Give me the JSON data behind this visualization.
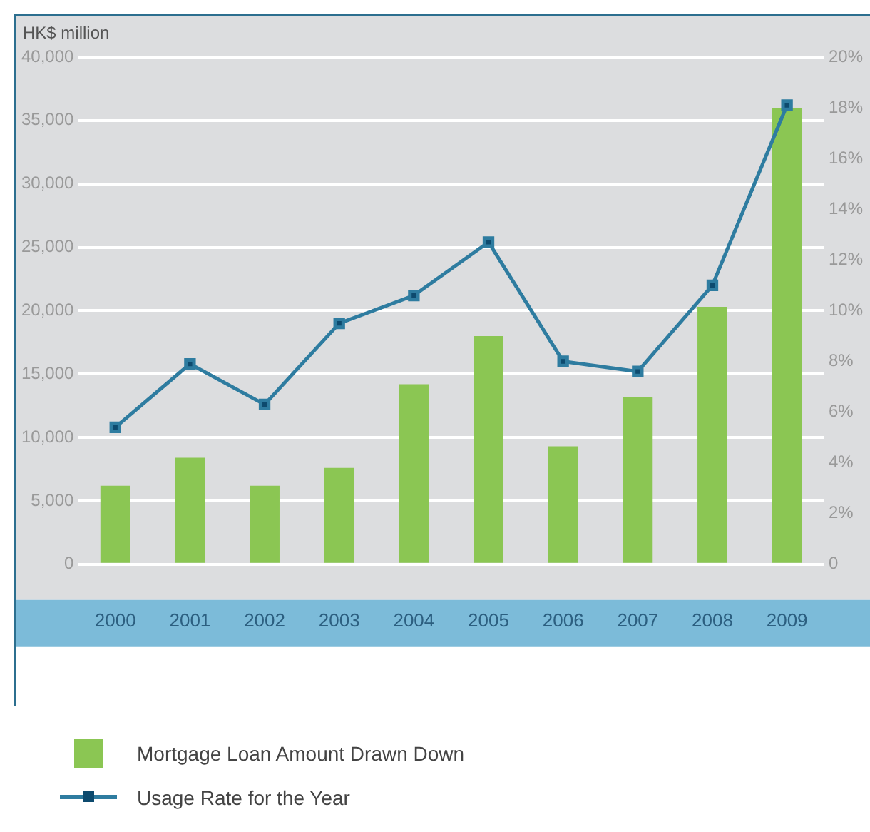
{
  "chart_data": {
    "type": "bar",
    "ylabel": "HK$ million",
    "categories": [
      "2000",
      "2001",
      "2002",
      "2003",
      "2004",
      "2005",
      "2006",
      "2007",
      "2008",
      "2009"
    ],
    "series": [
      {
        "name": "Mortgage Loan Amount Drawn Down",
        "color": "#8bc653",
        "values": [
          6200,
          8400,
          6200,
          7600,
          14200,
          18000,
          9300,
          13200,
          20300,
          36000
        ]
      },
      {
        "name": "Usage Rate for the Year",
        "type": "line",
        "axis": "y2",
        "color": "#2e7ca0",
        "values": [
          5.4,
          7.9,
          6.3,
          9.5,
          10.6,
          12.7,
          8.0,
          7.6,
          11.0,
          18.1
        ]
      }
    ],
    "ylim": [
      0,
      40000
    ],
    "yticks": [
      0,
      {
        "value": 5000,
        "label": "5,000"
      },
      {
        "value": 10000,
        "label": "10,000"
      },
      {
        "value": 15000,
        "label": "15,000"
      },
      {
        "value": 20000,
        "label": "20,000"
      },
      {
        "value": 25000,
        "label": "25,000"
      },
      {
        "value": 30000,
        "label": "30,000"
      },
      {
        "value": 35000,
        "label": "35,000"
      },
      {
        "value": 40000,
        "label": "40,000"
      }
    ],
    "y2lim": [
      0,
      20
    ],
    "y2ticks": [
      {
        "value": 0,
        "label": "0"
      },
      {
        "value": 2,
        "label": "2%"
      },
      {
        "value": 4,
        "label": "4%"
      },
      {
        "value": 6,
        "label": "6%"
      },
      {
        "value": 8,
        "label": "8%"
      },
      {
        "value": 10,
        "label": "10%"
      },
      {
        "value": 12,
        "label": "12%"
      },
      {
        "value": 14,
        "label": "14%"
      },
      {
        "value": 16,
        "label": "16%"
      },
      {
        "value": 18,
        "label": "18%"
      },
      {
        "value": 20,
        "label": "20%"
      }
    ],
    "grid": "y",
    "legend": "bottom left",
    "marker": "square",
    "line_style": "solid"
  }
}
